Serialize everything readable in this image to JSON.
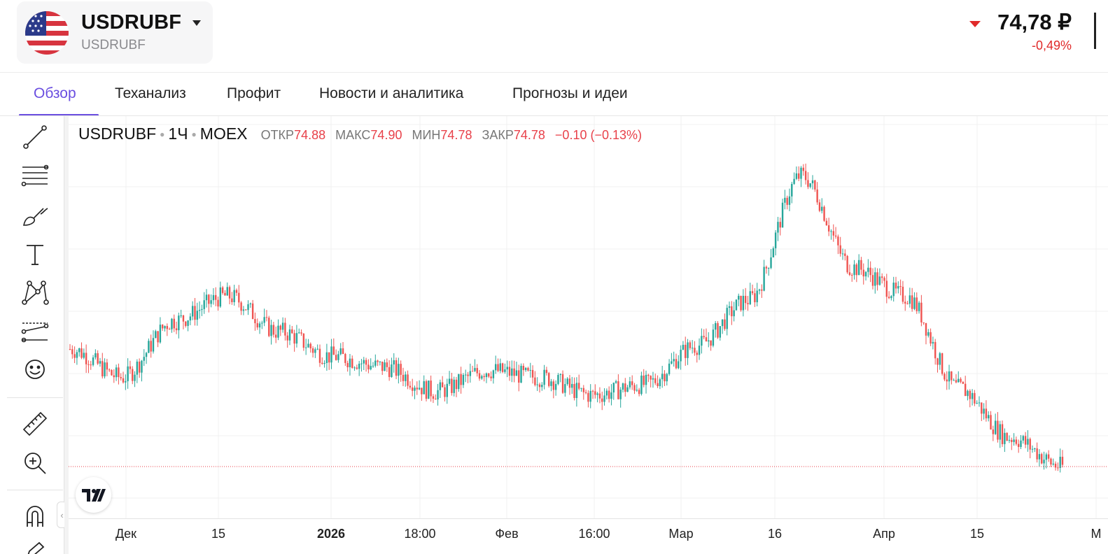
{
  "ticker": {
    "symbol": "USDRUBF",
    "subtitle": "USDRUBF",
    "flag_icon": "us-flag-icon",
    "price": "74,78 ₽",
    "change": "-0,49%",
    "direction": "down",
    "down_color": "#e02a2a"
  },
  "tabs": [
    {
      "label": "Обзор",
      "active": true
    },
    {
      "label": "Теханализ",
      "active": false
    },
    {
      "label": "Профит",
      "active": false
    },
    {
      "label": "Новости и аналитика",
      "active": false
    },
    {
      "label": "Прогнозы и идеи",
      "active": false
    }
  ],
  "toolbar": {
    "tools": [
      "trend-line-icon",
      "fib-lines-icon",
      "brush-icon",
      "text-icon",
      "pattern-icon",
      "forecast-icon",
      "emoji-icon",
      "ruler-icon",
      "zoom-in-icon",
      "magnet-icon",
      "pencil-icon"
    ],
    "collapse_glyph": "‹"
  },
  "legend": {
    "symbol": "USDRUBF",
    "interval": "1Ч",
    "exchange": "MOEX",
    "open_label": "ОТКР",
    "open": "74.88",
    "high_label": "МАКС",
    "high": "74.90",
    "low_label": "МИН",
    "low": "74.78",
    "close_label": "ЗАКР",
    "close": "74.78",
    "change": "−0.10 (−0.13%)"
  },
  "chart_data": {
    "type": "line",
    "style": "candlestick",
    "x_tick_labels": [
      "Дек",
      "15",
      "2026",
      "18:00",
      "Фев",
      "16:00",
      "Мар",
      "16",
      "Апр",
      "15",
      "М"
    ],
    "up_color": "#26a69a",
    "down_color": "#ef5350",
    "last_close": 74.78,
    "last_price_line": "dotted",
    "series": [
      {
        "x": [
          "Дек",
          "",
          "15",
          "",
          "2026",
          "",
          "18:00",
          "",
          "Фев",
          "",
          "16:00",
          "",
          "Мар",
          "",
          "16",
          "",
          "Апр",
          "",
          "15",
          ""
        ],
        "values": [
          78.1,
          77.3,
          78.9,
          79.6,
          78.6,
          77.9,
          77.6,
          76.9,
          77.5,
          77.3,
          76.8,
          77.1,
          78.2,
          79.5,
          83.0,
          80.4,
          79.6,
          77.0,
          75.6,
          74.78
        ]
      }
    ],
    "grid": true,
    "legend_position": "top-left"
  }
}
